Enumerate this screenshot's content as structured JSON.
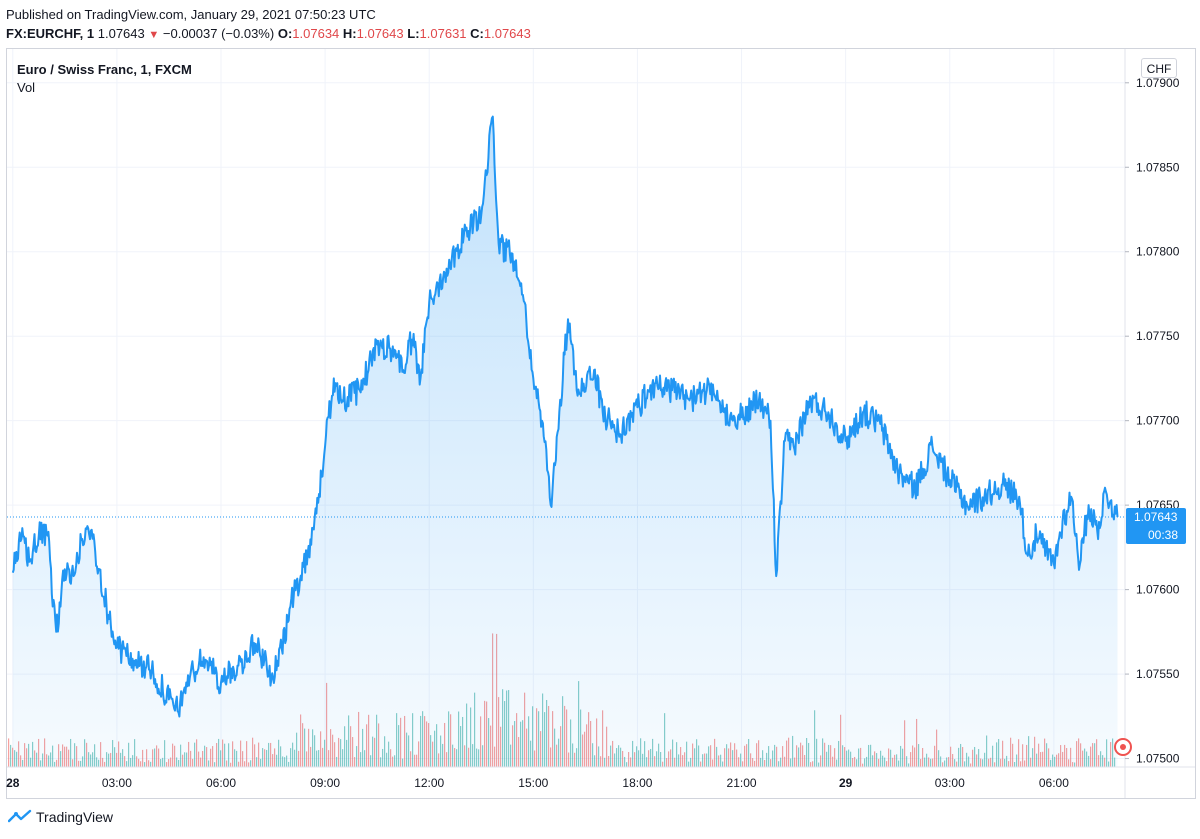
{
  "header": {
    "published": "Published on TradingView.com, January 29, 2021 07:50:23 UTC",
    "symbol": "FX:EURCHF, 1",
    "last": "1.07643",
    "change_arrow": "▼",
    "change": "−0.00037 (−0.03%)",
    "o_label": "O:",
    "o_value": "1.07634",
    "h_label": "H:",
    "h_value": "1.07643",
    "l_label": "L:",
    "l_value": "1.07631",
    "c_label": "C:",
    "c_value": "1.07643"
  },
  "legend": {
    "title": "Euro / Swiss Franc, 1, FXCM",
    "vol": "Vol"
  },
  "currency": "CHF",
  "price_tag": {
    "value": "1.07643",
    "countdown": "00:38"
  },
  "footer": {
    "brand": "TradingView"
  },
  "colors": {
    "line": "#2196f3",
    "up": "#26a69a",
    "down": "#ef5350",
    "tag": "#2196f3"
  },
  "chart_data": {
    "type": "area",
    "series": [
      {
        "name": "FX:EURCHF",
        "points": [
          [
            "01-28 00:00",
            1.0761
          ],
          [
            "01-28 00:15",
            1.0763
          ],
          [
            "01-28 00:30",
            1.07618
          ],
          [
            "01-28 00:45",
            1.07632
          ],
          [
            "01-28 01:00",
            1.07632
          ],
          [
            "01-28 01:15",
            1.07575
          ],
          [
            "01-28 01:30",
            1.07612
          ],
          [
            "01-28 01:45",
            1.07608
          ],
          [
            "01-28 02:00",
            1.0763
          ],
          [
            "01-28 02:15",
            1.07635
          ],
          [
            "01-28 02:30",
            1.07612
          ],
          [
            "01-28 02:45",
            1.07585
          ],
          [
            "01-28 03:00",
            1.07566
          ],
          [
            "01-28 03:30",
            1.07558
          ],
          [
            "01-28 04:00",
            1.07552
          ],
          [
            "01-28 04:30",
            1.07535
          ],
          [
            "01-28 04:45",
            1.07528
          ],
          [
            "01-28 05:00",
            1.07545
          ],
          [
            "01-28 05:30",
            1.0756
          ],
          [
            "01-28 06:00",
            1.07545
          ],
          [
            "01-28 06:30",
            1.07555
          ],
          [
            "01-28 07:00",
            1.07568
          ],
          [
            "01-28 07:30",
            1.07548
          ],
          [
            "01-28 07:45",
            1.07565
          ],
          [
            "01-28 08:00",
            1.0759
          ],
          [
            "01-28 08:30",
            1.07622
          ],
          [
            "01-28 08:45",
            1.07645
          ],
          [
            "01-28 09:00",
            1.07685
          ],
          [
            "01-28 09:15",
            1.07725
          ],
          [
            "01-28 09:30",
            1.07712
          ],
          [
            "01-28 10:00",
            1.07718
          ],
          [
            "01-28 10:30",
            1.07745
          ],
          [
            "01-28 11:00",
            1.07742
          ],
          [
            "01-28 11:15",
            1.0773
          ],
          [
            "01-28 11:30",
            1.07748
          ],
          [
            "01-28 11:45",
            1.07725
          ],
          [
            "01-28 12:00",
            1.0777
          ],
          [
            "01-28 12:30",
            1.0779
          ],
          [
            "01-28 13:00",
            1.0781
          ],
          [
            "01-28 13:30",
            1.07822
          ],
          [
            "01-28 13:50",
            1.0788
          ],
          [
            "01-28 14:00",
            1.07805
          ],
          [
            "01-28 14:30",
            1.07795
          ],
          [
            "01-28 14:45",
            1.0777
          ],
          [
            "01-28 15:00",
            1.07725
          ],
          [
            "01-28 15:15",
            1.077
          ],
          [
            "01-28 15:30",
            1.0765
          ],
          [
            "01-28 15:45",
            1.07705
          ],
          [
            "01-28 16:00",
            1.0776
          ],
          [
            "01-28 16:15",
            1.07718
          ],
          [
            "01-28 16:45",
            1.0773
          ],
          [
            "01-28 17:00",
            1.07705
          ],
          [
            "01-28 17:30",
            1.07692
          ],
          [
            "01-28 18:00",
            1.07708
          ],
          [
            "01-28 18:30",
            1.07722
          ],
          [
            "01-28 19:00",
            1.07718
          ],
          [
            "01-28 19:30",
            1.07712
          ],
          [
            "01-28 20:00",
            1.07718
          ],
          [
            "01-28 20:30",
            1.07705
          ],
          [
            "01-28 21:00",
            1.07702
          ],
          [
            "01-28 21:30",
            1.07712
          ],
          [
            "01-28 21:50",
            1.077
          ],
          [
            "01-28 22:00",
            1.07608
          ],
          [
            "01-28 22:15",
            1.07688
          ],
          [
            "01-28 22:30",
            1.07685
          ],
          [
            "01-28 23:00",
            1.07712
          ],
          [
            "01-28 23:30",
            1.07705
          ],
          [
            "01-29 00:00",
            1.07688
          ],
          [
            "01-29 00:30",
            1.07705
          ],
          [
            "01-29 01:00",
            1.07698
          ],
          [
            "01-29 01:30",
            1.0767
          ],
          [
            "01-29 02:00",
            1.0766
          ],
          [
            "01-29 02:30",
            1.07685
          ],
          [
            "01-29 03:00",
            1.07665
          ],
          [
            "01-29 03:30",
            1.0765
          ],
          [
            "01-29 04:00",
            1.07655
          ],
          [
            "01-29 04:30",
            1.07662
          ],
          [
            "01-29 05:00",
            1.07655
          ],
          [
            "01-29 05:15",
            1.0762
          ],
          [
            "01-29 05:30",
            1.07632
          ],
          [
            "01-29 06:00",
            1.07615
          ],
          [
            "01-29 06:15",
            1.0764
          ],
          [
            "01-29 06:30",
            1.07655
          ],
          [
            "01-29 06:45",
            1.07615
          ],
          [
            "01-29 07:00",
            1.0765
          ],
          [
            "01-29 07:15",
            1.07635
          ],
          [
            "01-29 07:30",
            1.07658
          ],
          [
            "01-29 07:50",
            1.07643
          ]
        ]
      }
    ],
    "x_ticks": [
      "28",
      "03:00",
      "06:00",
      "09:00",
      "12:00",
      "15:00",
      "18:00",
      "21:00",
      "29",
      "03:00",
      "06:00"
    ],
    "x_tick_times": [
      "01-28 00:00",
      "01-28 03:00",
      "01-28 06:00",
      "01-28 09:00",
      "01-28 12:00",
      "01-28 15:00",
      "01-28 18:00",
      "01-28 21:00",
      "01-29 00:00",
      "01-29 03:00",
      "01-29 06:00"
    ],
    "y_ticks": [
      "1.07900",
      "1.07850",
      "1.07800",
      "1.07750",
      "1.07700",
      "1.07650",
      "1.07600",
      "1.07550",
      "1.07500"
    ],
    "y_tick_values": [
      1.079,
      1.0785,
      1.078,
      1.0775,
      1.077,
      1.0765,
      1.076,
      1.0755,
      1.075
    ],
    "ylim": [
      1.07495,
      1.0792
    ],
    "xlim": [
      "01-27 23:50",
      "01-29 08:03"
    ],
    "last_price": 1.07643,
    "grid": true,
    "volume": "dense two-color volume bars along the bottom"
  }
}
